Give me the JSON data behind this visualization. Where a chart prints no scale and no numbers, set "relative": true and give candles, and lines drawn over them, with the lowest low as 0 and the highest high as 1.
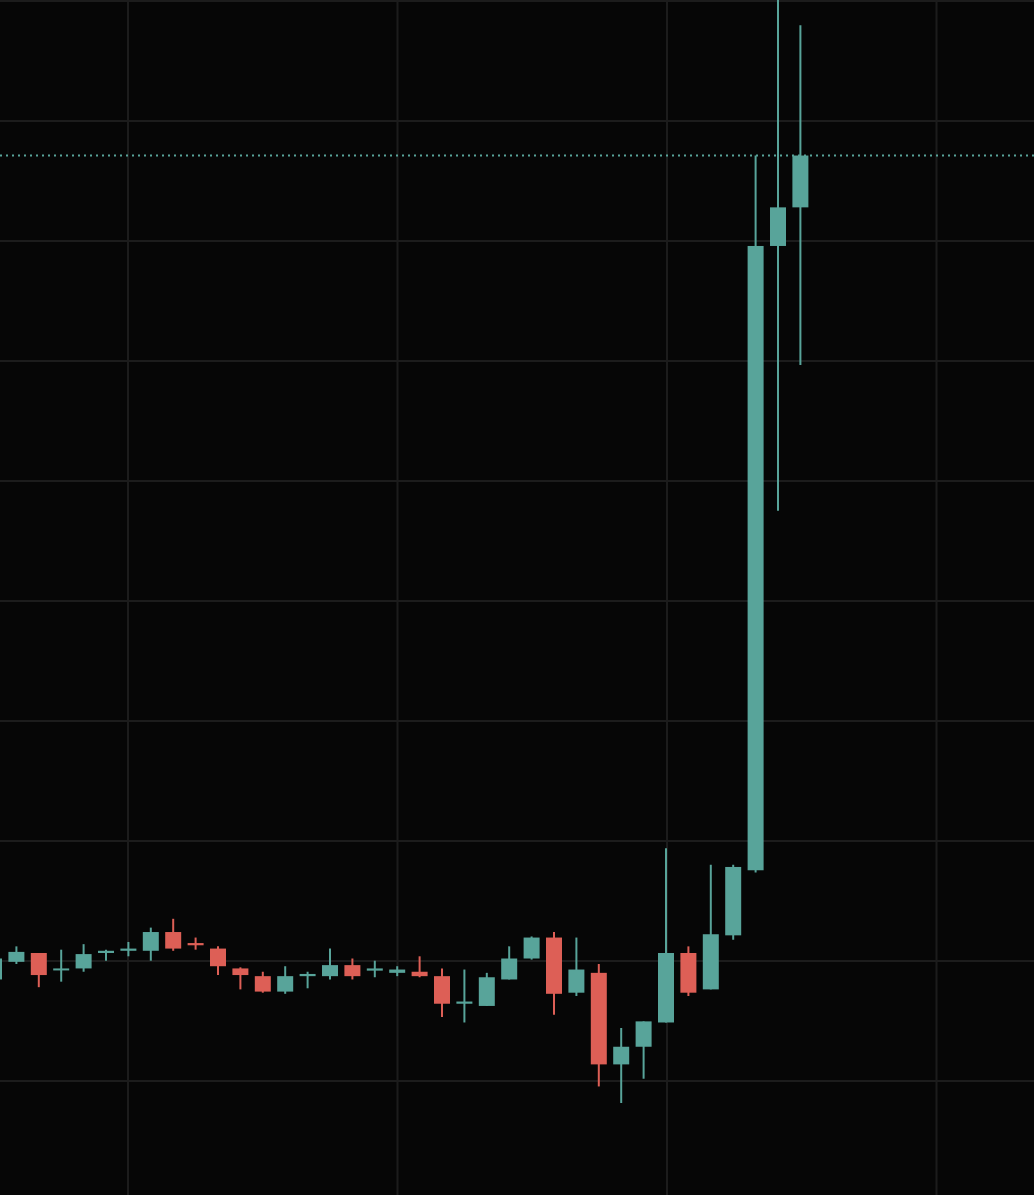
{
  "chart_data": {
    "type": "candlestick",
    "relative": true,
    "grid": true,
    "categories": [
      null,
      null,
      null,
      null,
      null,
      null,
      null,
      null,
      null,
      null,
      null,
      null,
      null,
      null,
      null,
      null,
      null,
      null,
      null,
      null,
      null,
      null,
      null,
      null,
      null,
      null,
      null,
      null,
      null,
      null,
      null,
      null,
      null,
      null,
      null,
      null,
      null,
      null,
      null,
      null,
      null,
      null,
      null,
      null,
      null,
      null,
      null
    ],
    "ohlc": [
      [
        0.112,
        0.134,
        0.11,
        0.131
      ],
      [
        0.128,
        0.142,
        0.126,
        0.137
      ],
      [
        0.136,
        0.136,
        0.105,
        0.116
      ],
      [
        0.121,
        0.139,
        0.11,
        0.122
      ],
      [
        0.122,
        0.144,
        0.119,
        0.135
      ],
      [
        0.136,
        0.139,
        0.129,
        0.138
      ],
      [
        0.138,
        0.146,
        0.133,
        0.14
      ],
      [
        0.138,
        0.159,
        0.129,
        0.155
      ],
      [
        0.155,
        0.167,
        0.138,
        0.14
      ],
      [
        0.145,
        0.15,
        0.139,
        0.143
      ],
      [
        0.14,
        0.142,
        0.116,
        0.124
      ],
      [
        0.122,
        0.123,
        0.103,
        0.116
      ],
      [
        0.115,
        0.119,
        0.1,
        0.101
      ],
      [
        0.101,
        0.124,
        0.099,
        0.115
      ],
      [
        0.115,
        0.119,
        0.104,
        0.117
      ],
      [
        0.115,
        0.14,
        0.112,
        0.125
      ],
      [
        0.125,
        0.131,
        0.112,
        0.115
      ],
      [
        0.12,
        0.129,
        0.114,
        0.122
      ],
      [
        0.118,
        0.124,
        0.115,
        0.121
      ],
      [
        0.119,
        0.133,
        0.114,
        0.115
      ],
      [
        0.115,
        0.122,
        0.078,
        0.09
      ],
      [
        0.09,
        0.121,
        0.073,
        0.092
      ],
      [
        0.088,
        0.118,
        0.088,
        0.114
      ],
      [
        0.112,
        0.142,
        0.112,
        0.131
      ],
      [
        0.131,
        0.151,
        0.13,
        0.15
      ],
      [
        0.15,
        0.155,
        0.08,
        0.099
      ],
      [
        0.1,
        0.15,
        0.097,
        0.121
      ],
      [
        0.118,
        0.126,
        0.015,
        0.035
      ],
      [
        0.035,
        0.068,
        0,
        0.051
      ],
      [
        0.051,
        0.074,
        0.022,
        0.074
      ],
      [
        0.073,
        0.231,
        0.073,
        0.136
      ],
      [
        0.136,
        0.142,
        0.097,
        0.1
      ],
      [
        0.103,
        0.216,
        0.103,
        0.153
      ],
      [
        0.152,
        0.216,
        0.148,
        0.214
      ],
      [
        0.211,
        0.859,
        0.209,
        0.777
      ],
      [
        0.777,
        1,
        0.537,
        0.812
      ],
      [
        0.812,
        0.977,
        0.669,
        0.859
      ],
      null,
      null,
      null,
      null,
      null,
      null,
      null,
      null,
      null,
      null
    ],
    "colors": [
      "#58a49a",
      "#58a49a",
      "#dd5f56",
      "#58a49a",
      "#58a49a",
      "#58a49a",
      "#58a49a",
      "#58a49a",
      "#dd5f56",
      "#dd5f56",
      "#dd5f56",
      "#dd5f56",
      "#dd5f56",
      "#58a49a",
      "#58a49a",
      "#58a49a",
      "#dd5f56",
      "#58a49a",
      "#58a49a",
      "#dd5f56",
      "#dd5f56",
      "#58a49a",
      "#58a49a",
      "#58a49a",
      "#58a49a",
      "#dd5f56",
      "#58a49a",
      "#dd5f56",
      "#58a49a",
      "#58a49a",
      "#58a49a",
      "#dd5f56",
      "#58a49a",
      "#58a49a",
      "#58a49a",
      "#58a49a",
      "#58a49a",
      null,
      null,
      null,
      null,
      null,
      null,
      null,
      null,
      null,
      null
    ],
    "ref_lines": [
      {
        "axis": "y",
        "value": 0.859,
        "color": "#58a49a",
        "line_style": "dotted"
      }
    ]
  }
}
